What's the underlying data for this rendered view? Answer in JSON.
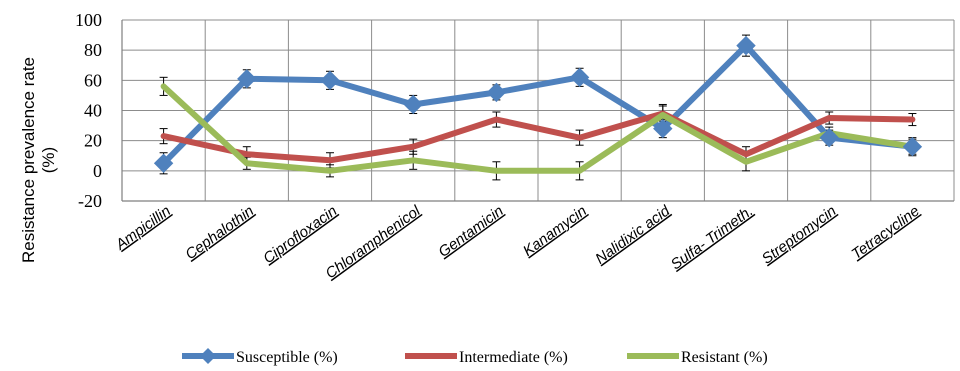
{
  "chart_data": {
    "type": "line",
    "title": "",
    "xlabel": "",
    "ylabel": "Resistance prevalence rate (%)",
    "ylabel_lines": [
      "Resistance prevalence rate",
      "(%)"
    ],
    "ylim": [
      -20,
      100
    ],
    "yticks": [
      -20,
      0,
      20,
      40,
      60,
      80,
      100
    ],
    "grid": true,
    "legend_position": "bottom",
    "categories": [
      "Ampicillin",
      "Cephalothin",
      "Ciprofloxacin",
      "Chloramphenicol",
      "Gentamicin",
      "Kanamycin",
      "Nalidixic acid",
      "Sulfa- Trimeth.",
      "Streptomycin",
      "Tetracycline"
    ],
    "series": [
      {
        "name": "Susceptible (%)",
        "color": "#4F81BD",
        "marker": "diamond",
        "values": [
          5,
          61,
          60,
          44,
          52,
          62,
          28,
          83,
          22,
          16
        ],
        "error": [
          7,
          6,
          6,
          6,
          5,
          6,
          6,
          7,
          5,
          6
        ]
      },
      {
        "name": "Intermediate (%)",
        "color": "#C0504D",
        "marker": "none",
        "values": [
          23,
          11,
          7,
          16,
          34,
          22,
          38,
          11,
          35,
          34
        ],
        "error": [
          5,
          5,
          5,
          5,
          5,
          5,
          5,
          5,
          4,
          4
        ]
      },
      {
        "name": "Resistant (%)",
        "color": "#9BBB59",
        "marker": "none",
        "values": [
          56,
          5,
          0,
          7,
          0,
          0,
          37,
          6,
          25,
          16
        ],
        "error": [
          6,
          4,
          4,
          6,
          6,
          6,
          7,
          6,
          4,
          5
        ]
      }
    ]
  }
}
